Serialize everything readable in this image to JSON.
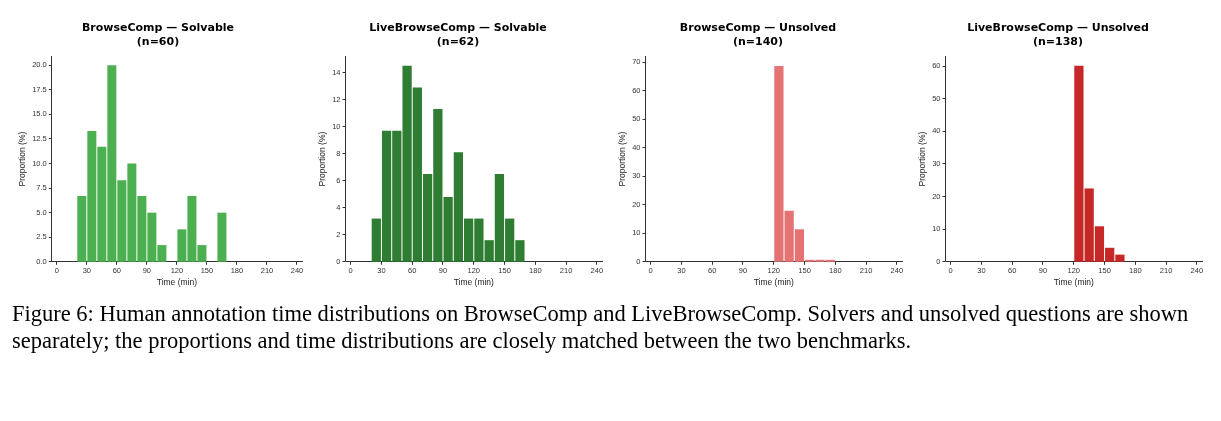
{
  "chart_data": [
    {
      "type": "histogram",
      "title": "BrowseComp — Solvable",
      "subtitle": "(n=60)",
      "xlabel": "Time (min)",
      "ylabel": "Proportion (%)",
      "color": "#4caf50",
      "bins": [
        20,
        30,
        40,
        50,
        60,
        70,
        80,
        90,
        100,
        110,
        120,
        130,
        140,
        150,
        160,
        170
      ],
      "values": [
        6.7,
        13.3,
        11.7,
        20,
        8.3,
        10,
        6.7,
        5,
        1.7,
        0,
        3.3,
        6.7,
        1.7,
        0,
        5
      ],
      "xlim": [
        -5,
        245
      ],
      "xticks": [
        0,
        30,
        60,
        90,
        120,
        150,
        180,
        210,
        240
      ],
      "ylim": [
        0,
        20.9
      ],
      "yticks": [
        {
          "value": 0,
          "label": "0.0"
        },
        {
          "value": 2.5,
          "label": "2.5"
        },
        {
          "value": 5,
          "label": "5.0"
        },
        {
          "value": 7.5,
          "label": "7.5"
        },
        {
          "value": 10,
          "label": "10.0"
        },
        {
          "value": 12.5,
          "label": "12.5"
        },
        {
          "value": 15,
          "label": "15.0"
        },
        {
          "value": 17.5,
          "label": "17.5"
        },
        {
          "value": 20,
          "label": "20.0"
        }
      ],
      "grid": false,
      "legend": false,
      "annotations": [
        "Figure 6: Human annotation time distributions on BrowseComp and LiveBrowseComp. Solvers and unsolved questions are shown separately; the proportions and time distributions are closely matched between the two benchmarks."
      ]
    },
    {
      "type": "histogram",
      "title": "LiveBrowseComp — Solvable",
      "subtitle": "(n=62)",
      "xlabel": "Time (min)",
      "ylabel": "Proportion (%)",
      "color": "#2e7d32",
      "bins": [
        20,
        30,
        40,
        50,
        60,
        70,
        80,
        90,
        100,
        110,
        120,
        130,
        140,
        150,
        160,
        170
      ],
      "values": [
        3.2,
        9.7,
        9.7,
        14.5,
        12.9,
        6.5,
        11.3,
        4.8,
        8.1,
        3.2,
        3.2,
        1.6,
        6.5,
        3.2,
        1.6
      ],
      "xlim": [
        -5,
        245
      ],
      "xticks": [
        0,
        30,
        60,
        90,
        120,
        150,
        180,
        210,
        240
      ],
      "ylim": [
        0,
        15.2
      ],
      "yticks": [
        0,
        2,
        4,
        6,
        8,
        10,
        12,
        14
      ],
      "grid": false,
      "legend": false
    },
    {
      "type": "histogram",
      "title": "BrowseComp — Unsolved",
      "subtitle": "(n=140)",
      "xlabel": "Time (min)",
      "ylabel": "Proportion (%)",
      "color": "#e57373",
      "bins": [
        120,
        130,
        140,
        150,
        160,
        170,
        180
      ],
      "values": [
        68.6,
        17.9,
        11.4,
        0.7,
        0.7,
        0.7
      ],
      "xlim": [
        -5,
        245
      ],
      "xticks": [
        0,
        30,
        60,
        90,
        120,
        150,
        180,
        210,
        240
      ],
      "ylim": [
        0,
        72
      ],
      "yticks": [
        0,
        10,
        20,
        30,
        40,
        50,
        60,
        70
      ],
      "grid": false,
      "legend": false
    },
    {
      "type": "histogram",
      "title": "LiveBrowseComp — Unsolved",
      "subtitle": "(n=138)",
      "xlabel": "Time (min)",
      "ylabel": "Proportion (%)",
      "color": "#c62828",
      "bins": [
        120,
        130,
        140,
        150,
        160,
        170
      ],
      "values": [
        60.1,
        22.5,
        10.9,
        4.3,
        2.2
      ],
      "xlim": [
        -5,
        245
      ],
      "xticks": [
        0,
        30,
        60,
        90,
        120,
        150,
        180,
        210,
        240
      ],
      "ylim": [
        0,
        63
      ],
      "yticks": [
        0,
        10,
        20,
        30,
        40,
        50,
        60
      ],
      "grid": false,
      "legend": false
    }
  ]
}
